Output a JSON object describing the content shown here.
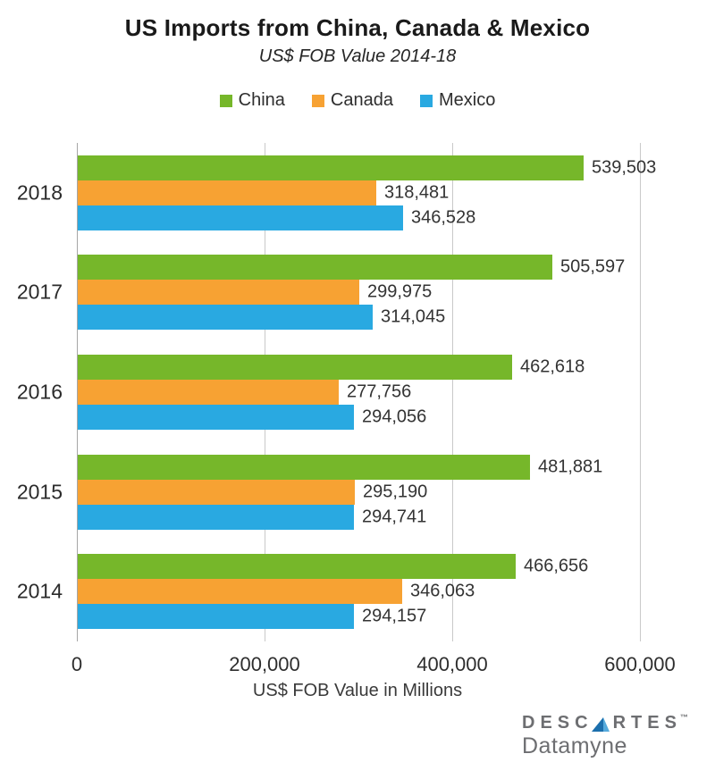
{
  "header": {
    "title": "US Imports from China, Canada & Mexico",
    "subtitle": "US$ FOB Value 2014-18"
  },
  "chart_data": {
    "type": "bar",
    "orientation": "horizontal",
    "title": "US Imports from China, Canada & Mexico",
    "subtitle": "US$ FOB Value 2014-18",
    "categories": [
      "2018",
      "2017",
      "2016",
      "2015",
      "2014"
    ],
    "series": [
      {
        "name": "China",
        "color": "#76B72A",
        "values": [
          539503,
          505597,
          462618,
          481881,
          466656
        ],
        "labels": [
          "539,503",
          "505,597",
          "462,618",
          "481,881",
          "466,656"
        ]
      },
      {
        "name": "Canada",
        "color": "#F7A233",
        "values": [
          318481,
          299975,
          277756,
          295190,
          346063
        ],
        "labels": [
          "318,481",
          "299,975",
          "277,756",
          "295,190",
          "346,063"
        ]
      },
      {
        "name": "Mexico",
        "color": "#29A9E1",
        "values": [
          346528,
          314045,
          294056,
          294741,
          294157
        ],
        "labels": [
          "346,528",
          "314,045",
          "294,056",
          "294,741",
          "294,157"
        ]
      }
    ],
    "xlabel": "US$ FOB Value in Millions",
    "xlim": [
      0,
      600000
    ],
    "x_ticks": [
      0,
      200000,
      400000,
      600000
    ],
    "x_tick_labels": [
      "0",
      "200,000",
      "400,000",
      "600,000"
    ],
    "legend_position": "top",
    "grid": "vertical"
  },
  "footer": {
    "logo_prefix": "DESC",
    "logo_suffix": "RTES",
    "logo_tm": "™",
    "logo_line2": "Datamyne",
    "logo_color": "#6d6e71",
    "triangle_dark": "#1C6FAD",
    "triangle_light": "#55AADC"
  }
}
